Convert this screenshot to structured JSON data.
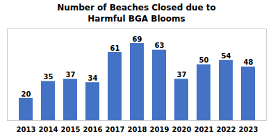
{
  "chart_data": {
    "type": "bar",
    "title": "Number of Beaches Closed due to\nHarmful BGA Blooms",
    "categories": [
      "2013",
      "2014",
      "2015",
      "2016",
      "2017",
      "2018",
      "2019",
      "2020",
      "2021",
      "2022",
      "2023"
    ],
    "values": [
      20,
      35,
      37,
      34,
      61,
      69,
      63,
      37,
      50,
      54,
      48
    ],
    "color": "#4472C4",
    "ylim": [
      0,
      82
    ],
    "grid": false,
    "data_labels": true,
    "tick_labels": "x"
  }
}
